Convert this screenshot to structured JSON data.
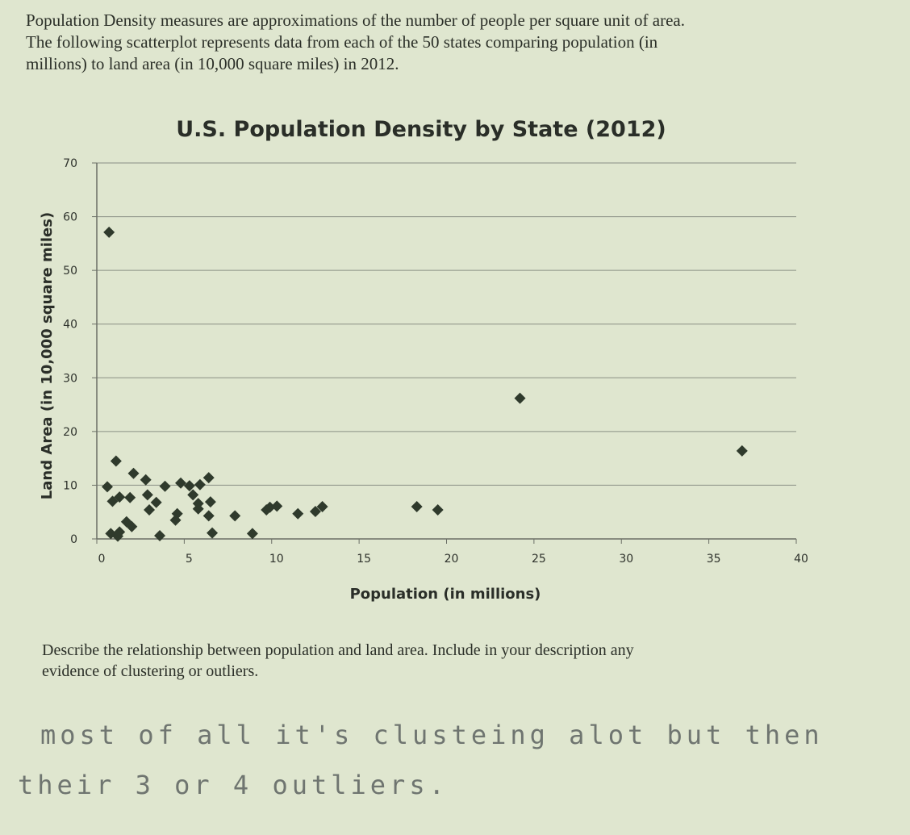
{
  "intro": {
    "line1": "Population Density measures are approximations of the number of people per square unit of area.",
    "line2": "The following scatterplot represents data from each of the 50 states comparing population (in",
    "line3": "millions) to land area (in 10,000 square miles) in 2012."
  },
  "chart_data": {
    "type": "scatter",
    "title": "U.S. Population Density by State (2012)",
    "xlabel": "Population (in millions)",
    "ylabel": "Land Area (in 10,000 square miles)",
    "xlim": [
      0,
      40
    ],
    "ylim": [
      0,
      70
    ],
    "xticks": [
      0,
      5,
      10,
      15,
      20,
      25,
      30,
      35,
      40
    ],
    "yticks": [
      0,
      10,
      20,
      30,
      40,
      50,
      60,
      70
    ],
    "grid": "horizontal",
    "marker_color": "#2f3a2c",
    "points": [
      {
        "x": 0.7,
        "y": 57.1
      },
      {
        "x": 24.2,
        "y": 26.2
      },
      {
        "x": 36.9,
        "y": 16.4
      },
      {
        "x": 0.6,
        "y": 9.7
      },
      {
        "x": 1.1,
        "y": 14.5
      },
      {
        "x": 0.9,
        "y": 7.0
      },
      {
        "x": 1.3,
        "y": 7.8
      },
      {
        "x": 1.9,
        "y": 7.7
      },
      {
        "x": 2.1,
        "y": 12.2
      },
      {
        "x": 2.8,
        "y": 11.0
      },
      {
        "x": 2.9,
        "y": 8.2
      },
      {
        "x": 3.4,
        "y": 6.8
      },
      {
        "x": 3.9,
        "y": 9.8
      },
      {
        "x": 3.0,
        "y": 5.4
      },
      {
        "x": 4.6,
        "y": 4.7
      },
      {
        "x": 4.8,
        "y": 10.4
      },
      {
        "x": 5.3,
        "y": 9.9
      },
      {
        "x": 5.9,
        "y": 10.1
      },
      {
        "x": 6.4,
        "y": 11.4
      },
      {
        "x": 5.5,
        "y": 8.2
      },
      {
        "x": 5.8,
        "y": 6.6
      },
      {
        "x": 6.5,
        "y": 6.9
      },
      {
        "x": 5.8,
        "y": 5.6
      },
      {
        "x": 6.4,
        "y": 4.3
      },
      {
        "x": 4.5,
        "y": 3.5
      },
      {
        "x": 0.8,
        "y": 1.0
      },
      {
        "x": 1.2,
        "y": 0.5
      },
      {
        "x": 1.3,
        "y": 1.3
      },
      {
        "x": 1.7,
        "y": 3.2
      },
      {
        "x": 2.0,
        "y": 2.3
      },
      {
        "x": 3.6,
        "y": 0.6
      },
      {
        "x": 6.6,
        "y": 1.1
      },
      {
        "x": 7.9,
        "y": 4.3
      },
      {
        "x": 8.9,
        "y": 1.0
      },
      {
        "x": 9.7,
        "y": 5.4
      },
      {
        "x": 9.9,
        "y": 5.9
      },
      {
        "x": 10.3,
        "y": 6.1
      },
      {
        "x": 11.5,
        "y": 4.7
      },
      {
        "x": 12.5,
        "y": 5.1
      },
      {
        "x": 12.9,
        "y": 6.0
      },
      {
        "x": 18.3,
        "y": 6.0
      },
      {
        "x": 19.5,
        "y": 5.4
      }
    ]
  },
  "question": {
    "line1": "Describe the relationship between population and land area.  Include in your description any",
    "line2": "evidence of clustering or outliers."
  },
  "answer": {
    "line1": "most of all it's clusteing alot but then",
    "line2": "their 3 or 4 outliers."
  }
}
